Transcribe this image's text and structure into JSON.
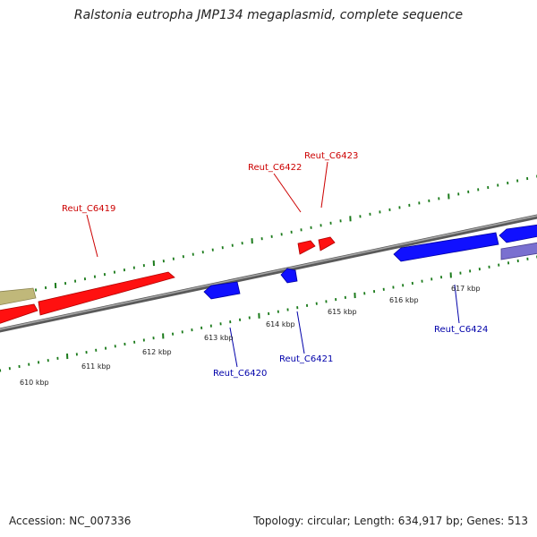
{
  "title": "Ralstonia eutropha JMP134 megaplasmid, complete sequence",
  "footer": {
    "accession": "Accession: NC_007336",
    "summary": "Topology: circular; Length: 634,917 bp; Genes: 513"
  },
  "colors": {
    "forward_gene": "#ff0000",
    "reverse_gene": "#0000ff",
    "other_forward": "#c0b87a",
    "other_reverse": "#7a70d0",
    "backbone": "#808080",
    "ruler_ticks": "#1a7a1a",
    "forward_label": "#cc0000",
    "reverse_label": "#0000aa"
  },
  "scale_labels": [
    "610 kbp",
    "611 kbp",
    "612 kbp",
    "613 kbp",
    "614 kbp",
    "615 kbp",
    "616 kbp",
    "617 kbp"
  ],
  "gene_labels": {
    "forward": [
      "Reut_C6419",
      "Reut_C6422",
      "Reut_C6423"
    ],
    "reverse": [
      "Reut_C6420",
      "Reut_C6421",
      "Reut_C6424"
    ]
  }
}
